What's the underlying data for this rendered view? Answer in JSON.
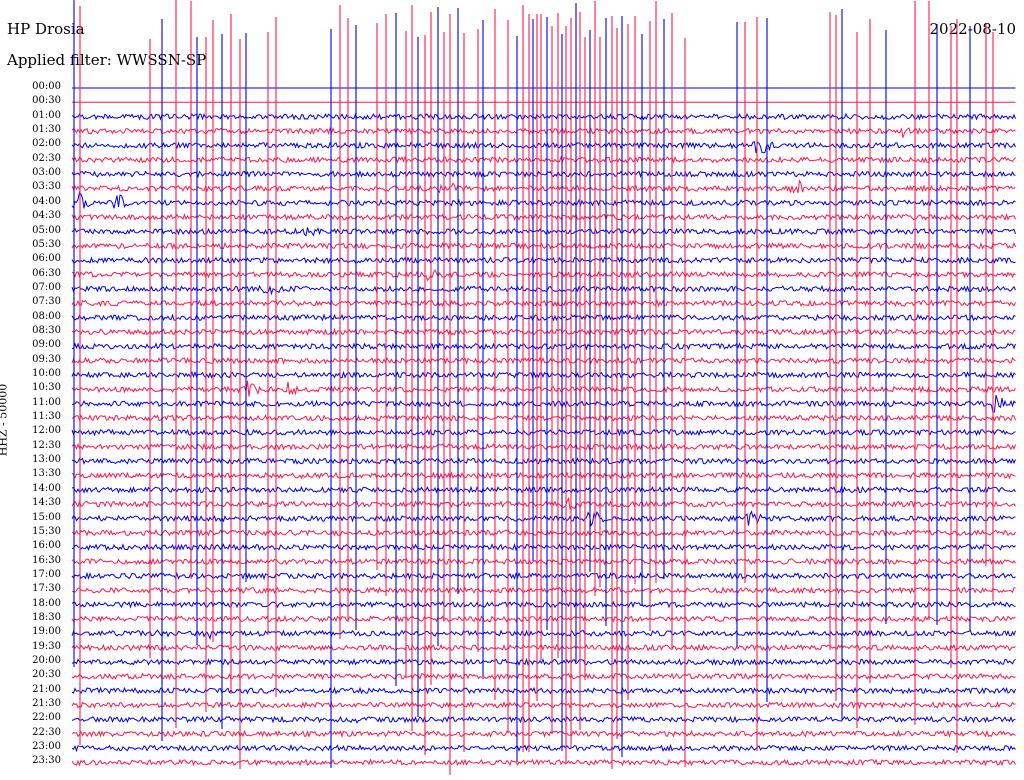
{
  "header": {
    "station": "HP Drosia",
    "filter": "Applied filter: WWSSN-SP",
    "date": "2022-08-10"
  },
  "channel_label": "HHZ - 50000",
  "colors": {
    "even": "#0000ee",
    "odd": "#ff1a4d"
  },
  "chart_data": {
    "type": "line",
    "title": "HP Drosia",
    "subtitle": "Applied filter: WWSSN-SP",
    "ylabel": "HHZ - 50000",
    "row_labels": [
      "00:00",
      "00:30",
      "01:00",
      "01:30",
      "02:00",
      "02:30",
      "03:00",
      "03:30",
      "04:00",
      "04:30",
      "05:00",
      "05:30",
      "06:00",
      "06:30",
      "07:00",
      "07:30",
      "08:00",
      "08:30",
      "09:00",
      "09:30",
      "10:00",
      "10:30",
      "11:00",
      "11:30",
      "12:00",
      "12:30",
      "13:00",
      "13:30",
      "14:00",
      "14:30",
      "15:00",
      "15:30",
      "16:00",
      "16:30",
      "17:00",
      "17:30",
      "18:00",
      "18:30",
      "19:00",
      "19:30",
      "20:00",
      "20:30",
      "21:00",
      "21:30",
      "22:00",
      "22:30",
      "23:00",
      "23:30"
    ],
    "events": [
      {
        "row": 3,
        "pos": 0.88,
        "amp": 0.5
      },
      {
        "row": 4,
        "pos": 0.73,
        "amp": 1.0
      },
      {
        "row": 7,
        "pos": 0.4,
        "amp": 0.6
      },
      {
        "row": 7,
        "pos": 0.77,
        "amp": 0.7
      },
      {
        "row": 8,
        "pos": 0.01,
        "amp": 0.9
      },
      {
        "row": 8,
        "pos": 0.05,
        "amp": 0.6
      },
      {
        "row": 10,
        "pos": 0.25,
        "amp": 0.4
      },
      {
        "row": 13,
        "pos": 0.38,
        "amp": 0.5
      },
      {
        "row": 14,
        "pos": 0.21,
        "amp": 0.5
      },
      {
        "row": 21,
        "pos": 0.19,
        "amp": 1.0
      },
      {
        "row": 21,
        "pos": 0.23,
        "amp": 0.7
      },
      {
        "row": 22,
        "pos": 0.98,
        "amp": 1.0
      },
      {
        "row": 29,
        "pos": 0.53,
        "amp": 0.7
      },
      {
        "row": 30,
        "pos": 0.55,
        "amp": 0.9
      },
      {
        "row": 30,
        "pos": 0.72,
        "amp": 0.8
      },
      {
        "row": 38,
        "pos": 0.1,
        "amp": 0.4
      },
      {
        "row": 38,
        "pos": 0.15,
        "amp": 0.4
      },
      {
        "row": 44,
        "pos": 0.3,
        "amp": 0.4
      }
    ]
  }
}
